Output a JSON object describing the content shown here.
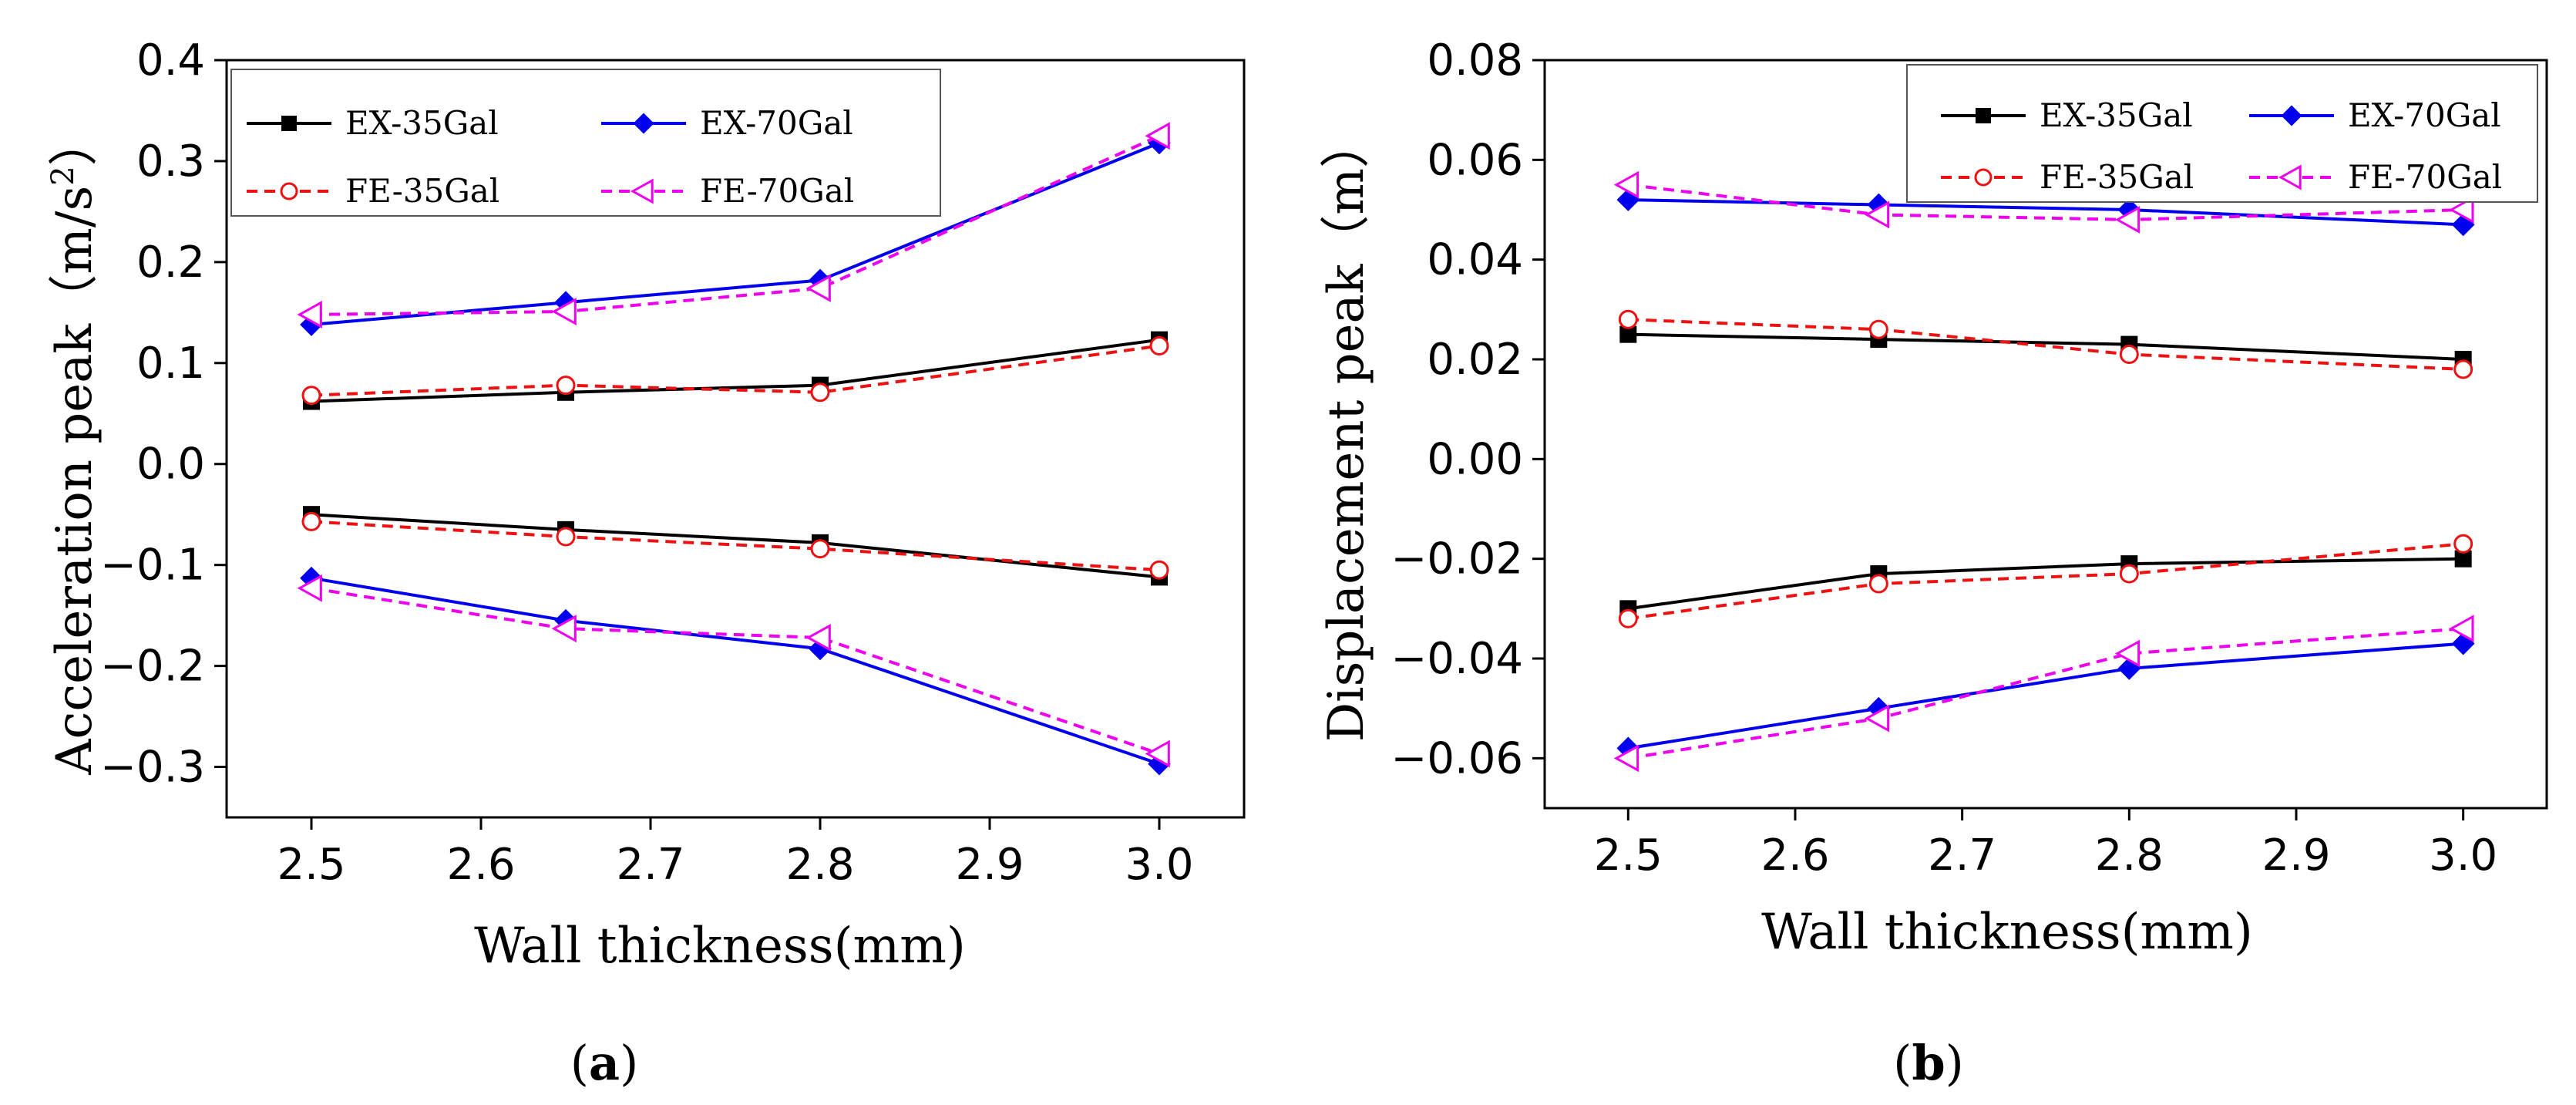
{
  "chart_data": [
    {
      "type": "line",
      "panel_label": "a",
      "xlabel": "Wall thickness(mm)",
      "ylabel": "Acceleration peak（m/s²）",
      "ylabel_main": "Acceleration peak（m/s",
      "ylabel_sup": "2",
      "ylabel_tail": "）",
      "xlim": [
        2.45,
        3.05
      ],
      "ylim": [
        -0.35,
        0.4
      ],
      "xticks": [
        2.5,
        2.6,
        2.7,
        2.8,
        2.9,
        3.0
      ],
      "xtick_labels": [
        "2.5",
        "2.6",
        "2.7",
        "2.8",
        "2.9",
        "3.0"
      ],
      "yticks": [
        -0.3,
        -0.2,
        -0.1,
        0.0,
        0.1,
        0.2,
        0.3,
        0.4
      ],
      "ytick_labels": [
        "−0.3",
        "−0.2",
        "−0.1",
        "0.0",
        "0.1",
        "0.2",
        "0.3",
        "0.4"
      ],
      "legend_position": "top",
      "x": [
        2.5,
        2.65,
        2.8,
        3.0
      ],
      "series": [
        {
          "name": "EX-35Gal",
          "color": "#000000",
          "dash": "solid",
          "marker": "square",
          "values": [
            0.062,
            0.071,
            0.078,
            0.123
          ]
        },
        {
          "name": "EX-35Gal",
          "legend": false,
          "color": "#000000",
          "dash": "solid",
          "marker": "square",
          "values": [
            -0.05,
            -0.065,
            -0.078,
            -0.112
          ]
        },
        {
          "name": "EX-70Gal",
          "color": "#0000ee",
          "dash": "solid",
          "marker": "diamond",
          "values": [
            0.138,
            0.16,
            0.182,
            0.318
          ]
        },
        {
          "name": "EX-70Gal",
          "legend": false,
          "color": "#0000ee",
          "dash": "solid",
          "marker": "diamond",
          "values": [
            -0.113,
            -0.155,
            -0.183,
            -0.297
          ]
        },
        {
          "name": "FE-35Gal",
          "color": "#ee1111",
          "dash": "dashed",
          "marker": "circle",
          "values": [
            0.068,
            0.078,
            0.071,
            0.117
          ]
        },
        {
          "name": "FE-35Gal",
          "legend": false,
          "color": "#ee1111",
          "dash": "dashed",
          "marker": "circle",
          "values": [
            -0.057,
            -0.072,
            -0.084,
            -0.105
          ]
        },
        {
          "name": "FE-70Gal",
          "color": "#ee00ee",
          "dash": "dashed",
          "marker": "triangle-left",
          "values": [
            0.148,
            0.151,
            0.174,
            0.325
          ]
        },
        {
          "name": "FE-70Gal",
          "legend": false,
          "color": "#ee00ee",
          "dash": "dashed",
          "marker": "triangle-left",
          "values": [
            -0.123,
            -0.163,
            -0.172,
            -0.287
          ]
        }
      ]
    },
    {
      "type": "line",
      "panel_label": "b",
      "xlabel": "Wall thickness(mm)",
      "ylabel": "Displacement peak（m）",
      "ylabel_main": "Displacement peak（m）",
      "ylabel_sup": "",
      "ylabel_tail": "",
      "xlim": [
        2.45,
        3.05
      ],
      "ylim": [
        -0.07,
        0.08
      ],
      "xticks": [
        2.5,
        2.6,
        2.7,
        2.8,
        2.9,
        3.0
      ],
      "xtick_labels": [
        "2.5",
        "2.6",
        "2.7",
        "2.8",
        "2.9",
        "3.0"
      ],
      "yticks": [
        -0.06,
        -0.04,
        -0.02,
        0.0,
        0.02,
        0.04,
        0.06,
        0.08
      ],
      "ytick_labels": [
        "−0.06",
        "−0.04",
        "−0.02",
        "0.00",
        "0.02",
        "0.04",
        "0.06",
        "0.08"
      ],
      "legend_position": "top-right",
      "x": [
        2.5,
        2.65,
        2.8,
        3.0
      ],
      "series": [
        {
          "name": "EX-35Gal",
          "color": "#000000",
          "dash": "solid",
          "marker": "square",
          "values": [
            0.025,
            0.024,
            0.023,
            0.02
          ]
        },
        {
          "name": "EX-35Gal",
          "legend": false,
          "color": "#000000",
          "dash": "solid",
          "marker": "square",
          "values": [
            -0.03,
            -0.023,
            -0.021,
            -0.02
          ]
        },
        {
          "name": "EX-70Gal",
          "color": "#0000ee",
          "dash": "solid",
          "marker": "diamond",
          "values": [
            0.052,
            0.051,
            0.05,
            0.047
          ]
        },
        {
          "name": "EX-70Gal",
          "legend": false,
          "color": "#0000ee",
          "dash": "solid",
          "marker": "diamond",
          "values": [
            -0.058,
            -0.05,
            -0.042,
            -0.037
          ]
        },
        {
          "name": "FE-35Gal",
          "color": "#ee1111",
          "dash": "dashed",
          "marker": "circle",
          "values": [
            0.028,
            0.026,
            0.021,
            0.018
          ]
        },
        {
          "name": "FE-35Gal",
          "legend": false,
          "color": "#ee1111",
          "dash": "dashed",
          "marker": "circle",
          "values": [
            -0.032,
            -0.025,
            -0.023,
            -0.017
          ]
        },
        {
          "name": "FE-70Gal",
          "color": "#ee00ee",
          "dash": "dashed",
          "marker": "triangle-left",
          "values": [
            0.055,
            0.049,
            0.048,
            0.05
          ]
        },
        {
          "name": "FE-70Gal",
          "legend": false,
          "color": "#ee00ee",
          "dash": "dashed",
          "marker": "triangle-left",
          "values": [
            -0.06,
            -0.052,
            -0.039,
            -0.034
          ]
        }
      ]
    }
  ]
}
